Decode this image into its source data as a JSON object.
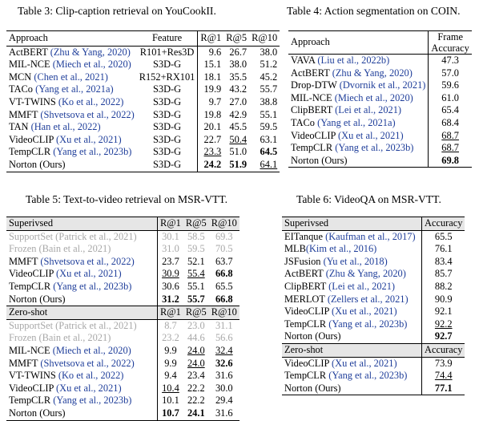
{
  "table3": {
    "caption": "Table 3: Clip-caption retrieval on YouCookII.",
    "headers": {
      "approach": "Approach",
      "feature": "Feature",
      "r1": "R@1",
      "r5": "R@5",
      "r10": "R@10"
    },
    "rows": [
      {
        "name": "ActBERT ",
        "cite": "(Zhu & Yang, 2020)",
        "feature": "R101+Res3D",
        "r1": "9.6",
        "r5": "26.7",
        "r10": "38.0"
      },
      {
        "name": "MIL-NCE ",
        "cite": "(Miech et al., 2020)",
        "feature": "S3D-G",
        "r1": "15.1",
        "r5": "38.0",
        "r10": "51.2"
      },
      {
        "name": "MCN ",
        "cite": "(Chen et al., 2021)",
        "feature": "R152+RX101",
        "r1": "18.1",
        "r5": "35.5",
        "r10": "45.2"
      },
      {
        "name": "TACo ",
        "cite": "(Yang et al., 2021a)",
        "feature": "S3D-G",
        "r1": "19.9",
        "r5": "43.2",
        "r10": "55.7"
      },
      {
        "name": "VT-TWINS ",
        "cite": "(Ko et al., 2022)",
        "feature": "S3D-G",
        "r1": "9.7",
        "r5": "27.0",
        "r10": "38.8"
      },
      {
        "name": "MMFT ",
        "cite": "(Shvetsova et al., 2022)",
        "feature": "S3D-G",
        "r1": "19.8",
        "r5": "42.9",
        "r10": "55.1"
      },
      {
        "name": "TAN ",
        "cite": "(Han et al., 2022)",
        "feature": "S3D-G",
        "r1": "20.1",
        "r5": "45.5",
        "r10": "59.5"
      },
      {
        "name": "VideoCLIP ",
        "cite": "(Xu et al., 2021)",
        "feature": "S3D-G",
        "r1": "22.7",
        "r5": "50.4",
        "r10": "63.1"
      },
      {
        "name": "TempCLR ",
        "cite": "(Yang et al., 2023b)",
        "feature": "S3D-G",
        "r1": "23.3",
        "r5": "51.0",
        "r10": "64.5"
      },
      {
        "name": "Norton (Ours)",
        "cite": "",
        "feature": "S3D-G",
        "r1": "24.2",
        "r5": "51.9",
        "r10": "64.1"
      }
    ]
  },
  "table4": {
    "caption": "Table 4: Action segmentation on COIN.",
    "headers": {
      "approach": "Approach",
      "frame": "Frame",
      "accuracy": "Accuracy"
    },
    "rows": [
      {
        "name": "VAVA ",
        "cite": "(Liu et al., 2022b)",
        "acc": "47.3"
      },
      {
        "name": "ActBERT ",
        "cite": "(Zhu & Yang, 2020)",
        "acc": "57.0"
      },
      {
        "name": "Drop-DTW ",
        "cite": "(Dvornik et al., 2021)",
        "acc": "59.6"
      },
      {
        "name": "MIL-NCE ",
        "cite": "(Miech et al., 2020)",
        "acc": "61.0"
      },
      {
        "name": "ClipBERT ",
        "cite": "(Lei et al., 2021)",
        "acc": "65.4"
      },
      {
        "name": "TACo ",
        "cite": "(Yang et al., 2021a)",
        "acc": "68.4"
      },
      {
        "name": "VideoCLIP ",
        "cite": "(Xu et al., 2021)",
        "acc": "68.7"
      },
      {
        "name": "TempCLR ",
        "cite": "(Yang et al., 2023b)",
        "acc": "68.7"
      },
      {
        "name": "Norton (Ours)",
        "cite": "",
        "acc": "69.8"
      }
    ]
  },
  "table5": {
    "caption": "Table 5: Text-to-video retrieval on MSR-VTT.",
    "supervised_label": "Superivsed",
    "zeroshot_label": "Zero-shot",
    "headers": {
      "r1": "R@1",
      "r5": "R@5",
      "r10": "R@10"
    },
    "supervised": [
      {
        "name": "SupportSet ",
        "cite": "(Patrick et al., 2021)",
        "r1": "30.1",
        "r5": "58.5",
        "r10": "69.3"
      },
      {
        "name": "Frozen ",
        "cite": "(Bain et al., 2021)",
        "r1": "31.0",
        "r5": "59.5",
        "r10": "70.5"
      },
      {
        "name": "MMFT ",
        "cite": "(Shvetsova et al., 2022)",
        "r1": "23.7",
        "r5": "52.1",
        "r10": "63.7"
      },
      {
        "name": "VideoCLIP ",
        "cite": "(Xu et al., 2021)",
        "r1": "30.9",
        "r5": "55.4",
        "r10": "66.8"
      },
      {
        "name": "TempCLR ",
        "cite": "(Yang et al., 2023b)",
        "r1": "30.6",
        "r5": "55.1",
        "r10": "65.5"
      },
      {
        "name": "Norton (Ours)",
        "cite": "",
        "r1": "31.2",
        "r5": "55.7",
        "r10": "66.8"
      }
    ],
    "zeroshot": [
      {
        "name": "SupportSet ",
        "cite": "(Patrick et al., 2021)",
        "r1": "8.7",
        "r5": "23.0",
        "r10": "31.1"
      },
      {
        "name": "Frozen ",
        "cite": "(Bain et al., 2021)",
        "r1": "23.2",
        "r5": "44.6",
        "r10": "56.6"
      },
      {
        "name": "MIL-NCE ",
        "cite": "(Miech et al., 2020)",
        "r1": "9.9",
        "r5": "24.0",
        "r10": "32.4"
      },
      {
        "name": "MMFT ",
        "cite": "(Shvetsova et al., 2022)",
        "r1": "9.9",
        "r5": "24.0",
        "r10": "32.6"
      },
      {
        "name": "VT-TWINS ",
        "cite": "(Ko et al., 2022)",
        "r1": "9.4",
        "r5": "23.4",
        "r10": "31.6"
      },
      {
        "name": "VideoCLIP ",
        "cite": "(Xu et al., 2021)",
        "r1": "10.4",
        "r5": "22.2",
        "r10": "30.0"
      },
      {
        "name": "TempCLR ",
        "cite": "(Yang et al., 2023b)",
        "r1": "10.1",
        "r5": "22.2",
        "r10": "29.4"
      },
      {
        "name": "Norton (Ours)",
        "cite": "",
        "r1": "10.7",
        "r5": "24.1",
        "r10": "31.6"
      }
    ]
  },
  "table6": {
    "caption": "Table 6: VideoQA on MSR-VTT.",
    "supervised_label": "Superivsed",
    "zeroshot_label": "Zero-shot",
    "accuracy_label": "Accuracy",
    "supervised": [
      {
        "name": "EITanque ",
        "cite": "(Kaufman et al., 2017)",
        "acc": "65.5"
      },
      {
        "name": "MLB",
        "cite": "(Kim et al., 2016)",
        "acc": "76.1"
      },
      {
        "name": "JSFusion ",
        "cite": "(Yu et al., 2018)",
        "acc": "83.4"
      },
      {
        "name": "ActBERT ",
        "cite": "(Zhu & Yang, 2020)",
        "acc": "85.7"
      },
      {
        "name": "ClipBERT ",
        "cite": "(Lei et al., 2021)",
        "acc": "88.2"
      },
      {
        "name": "MERLOT ",
        "cite": "(Zellers et al., 2021)",
        "acc": "90.9"
      },
      {
        "name": "VideoCLIP ",
        "cite": "(Xu et al., 2021)",
        "acc": "92.1"
      },
      {
        "name": "TempCLR ",
        "cite": "(Yang et al., 2023b)",
        "acc": "92.2"
      },
      {
        "name": "Norton (Ours)",
        "cite": "",
        "acc": "92.7"
      }
    ],
    "zeroshot": [
      {
        "name": "VideoCLIP ",
        "cite": "(Xu et al., 2021)",
        "acc": "73.9"
      },
      {
        "name": "TempCLR ",
        "cite": "(Yang et al., 2023b)",
        "acc": "74.4"
      },
      {
        "name": "Norton (Ours)",
        "cite": "",
        "acc": "77.1"
      }
    ]
  }
}
